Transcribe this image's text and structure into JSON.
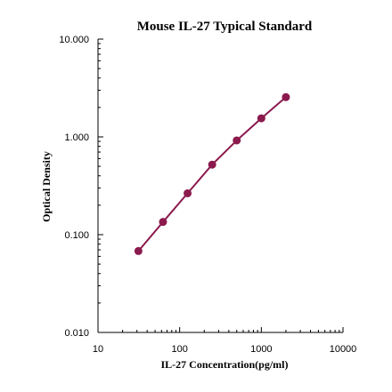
{
  "chart_data": {
    "type": "scatter",
    "title": "Mouse IL-27 Typical  Standard",
    "xlabel": "IL-27 Concentration(pg/ml)",
    "ylabel": "Optical Density",
    "x_scale": "log",
    "y_scale": "log",
    "xlim": [
      10,
      10000
    ],
    "ylim": [
      0.01,
      10
    ],
    "x_ticks": [
      10,
      100,
      1000,
      10000
    ],
    "x_tick_labels": [
      "10",
      "100",
      "1000",
      "10000"
    ],
    "y_ticks": [
      0.01,
      0.1,
      1,
      10
    ],
    "y_tick_labels": [
      "0.010",
      "0.100",
      "1.000",
      "10.000"
    ],
    "grid": false,
    "legend": "none",
    "series": [
      {
        "color": "#8b1a4d",
        "marker": "circle",
        "line": "fit",
        "x": [
          31.25,
          62.5,
          125,
          250,
          500,
          1000,
          2000
        ],
        "y": [
          0.068,
          0.135,
          0.265,
          0.52,
          0.92,
          1.55,
          2.55
        ]
      }
    ]
  }
}
